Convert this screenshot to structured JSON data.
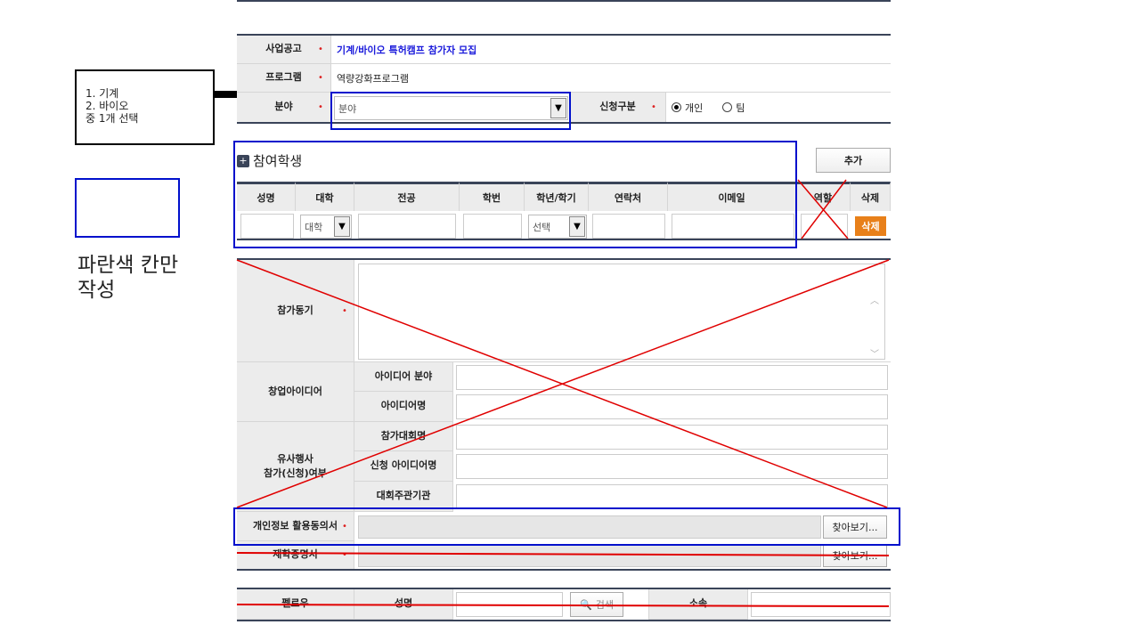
{
  "annotation": {
    "note_lines": [
      "1. 기계",
      "2. 바이오",
      "중 1개 선택"
    ],
    "legend_text_1": "파란색 칸만",
    "legend_text_2": "작성"
  },
  "form": {
    "announcement_label": "사업공고",
    "announcement_value": "기계/바이오 특허캠프 참가자 모집",
    "program_label": "프로그램",
    "program_value": "역량강화프로그램",
    "field_label": "분야",
    "field_value": "분야",
    "apply_type_label": "신청구분",
    "apply_options": [
      "개인",
      "팀"
    ],
    "apply_selected": "개인"
  },
  "students": {
    "title": "참여학생",
    "add_label": "추가",
    "columns": [
      "성명",
      "대학",
      "전공",
      "학번",
      "학년/학기",
      "연락처",
      "이메일",
      "역할",
      "삭제"
    ],
    "university_placeholder": "대학",
    "grade_placeholder": "선택",
    "delete_label": "삭제"
  },
  "details": {
    "motivation_label": "참가동기",
    "idea_label": "창업아이디어",
    "idea_field_label": "아이디어 분야",
    "idea_name_label": "아이디어명",
    "similar_label_1": "유사행사",
    "similar_label_2": "참가(신청)여부",
    "contest_name_label": "참가대회명",
    "applied_idea_label": "신청 아이디어명",
    "organizer_label": "대회주관기관",
    "privacy_label": "개인정보 활용동의서",
    "enroll_label": "재학증명서",
    "browse_label": "찾아보기..."
  },
  "fellow": {
    "label": "펠로우",
    "name_label": "성명",
    "search_label": "검색",
    "affiliation_label": "소속"
  },
  "colors": {
    "annotation_blue": "#0010cc",
    "strike_red": "#e00000",
    "header_dark": "#3a4459",
    "delete_orange": "#e8801a",
    "link_blue": "#1a1adb"
  }
}
